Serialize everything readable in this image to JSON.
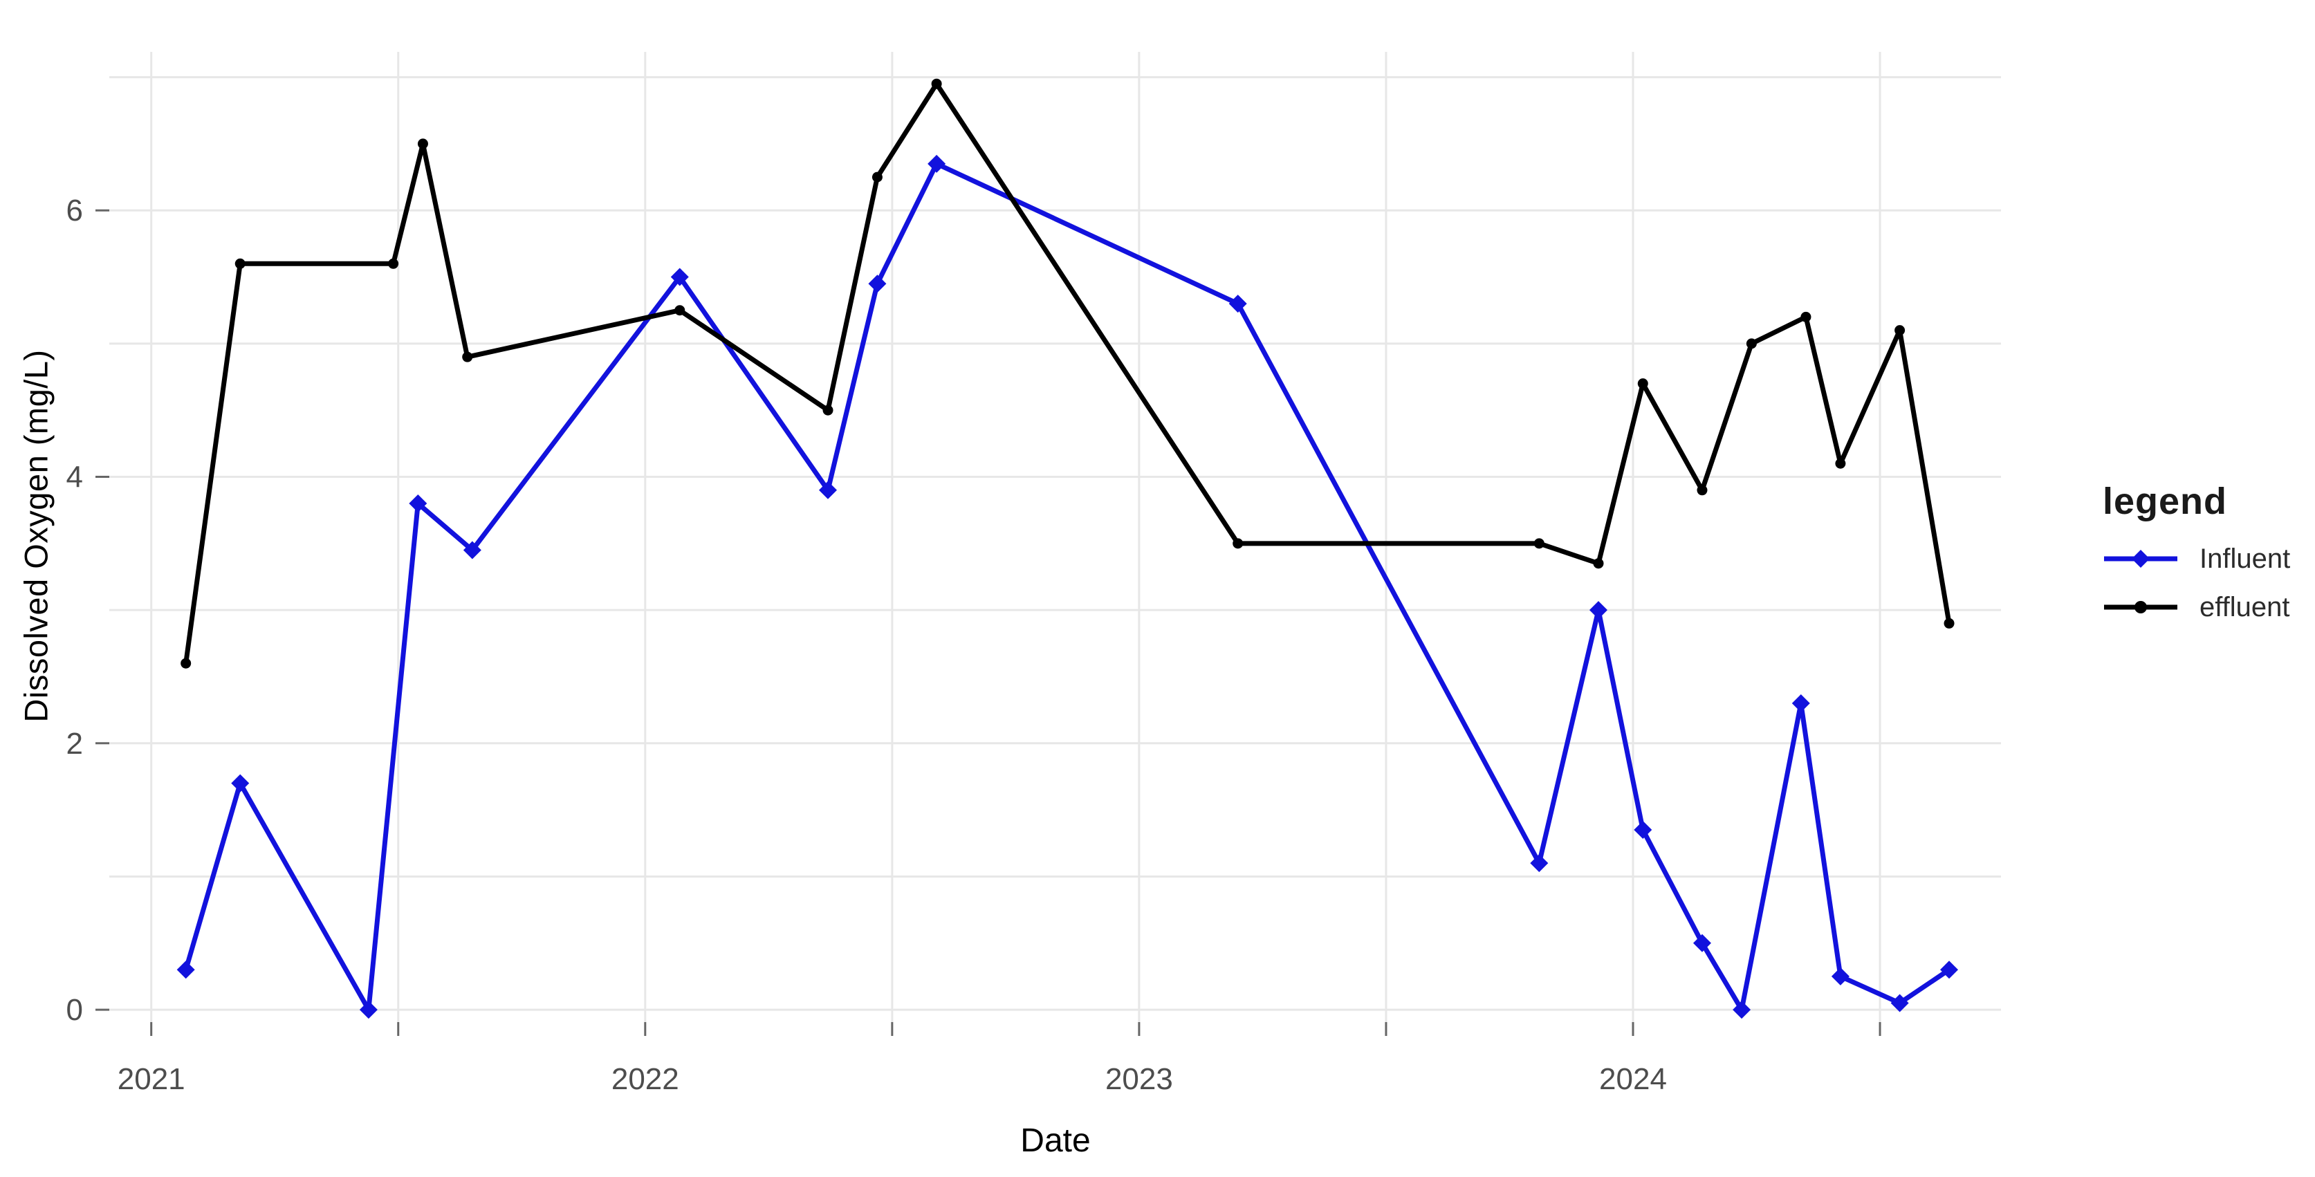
{
  "chart_data": {
    "type": "line",
    "title": "",
    "xlabel": "Date",
    "ylabel": "Dissolved Oxygen (mg/L)",
    "xlim": [
      2020.915,
      2024.745
    ],
    "ylim": [
      -0.093,
      7.19
    ],
    "x_tick_labels": [
      "2021",
      "2022",
      "2023",
      "2024"
    ],
    "x_tick_positions": [
      2021,
      2022,
      2023,
      2024
    ],
    "x_minor_tick_positions": [
      2021.5,
      2022.5,
      2023.5,
      2024.5
    ],
    "y_tick_labels": [
      "0",
      "2",
      "4",
      "6"
    ],
    "y_tick_positions": [
      0,
      2,
      4,
      6
    ],
    "y_gridline_positions": [
      0,
      1,
      2,
      3,
      4,
      5,
      6,
      7
    ],
    "grid": "on",
    "legend": {
      "title": "legend",
      "position": "right"
    },
    "series": [
      {
        "name": "Influent",
        "color": "#1212dd",
        "marker": "diamond",
        "x": [
          2021.07,
          2021.18,
          2021.44,
          2021.54,
          2021.65,
          2022.07,
          2022.37,
          2022.47,
          2022.59,
          2023.2,
          2023.81,
          2023.93,
          2024.02,
          2024.14,
          2024.22,
          2024.34,
          2024.42,
          2024.54,
          2024.64
        ],
        "y": [
          0.3,
          1.7,
          0.0,
          3.8,
          3.45,
          5.5,
          3.9,
          5.45,
          6.35,
          5.3,
          1.1,
          3.0,
          1.35,
          0.5,
          0.0,
          2.3,
          0.25,
          0.05,
          0.3
        ]
      },
      {
        "name": "effluent",
        "color": "#000000",
        "marker": "circle",
        "x": [
          2021.07,
          2021.18,
          2021.49,
          2021.55,
          2021.64,
          2022.07,
          2022.37,
          2022.47,
          2022.59,
          2023.2,
          2023.81,
          2023.93,
          2024.02,
          2024.14,
          2024.24,
          2024.35,
          2024.42,
          2024.54,
          2024.64
        ],
        "y": [
          2.6,
          5.6,
          5.6,
          6.5,
          4.9,
          5.25,
          4.5,
          6.25,
          6.95,
          3.5,
          3.5,
          3.35,
          4.7,
          3.9,
          5.0,
          5.2,
          4.1,
          5.1,
          2.9
        ]
      }
    ],
    "style": {
      "gridline_color": "#e7e7e7",
      "tick_color": "#666666",
      "tick_label_color": "#4d4d4d",
      "background": "#ffffff",
      "line_width": 7
    }
  }
}
